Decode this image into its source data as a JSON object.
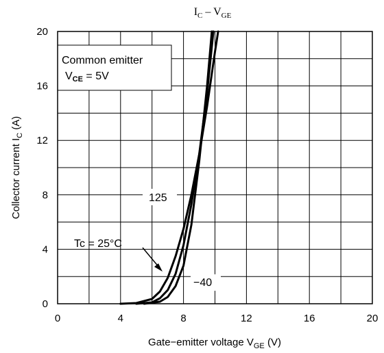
{
  "chart_data": {
    "type": "line",
    "title": {
      "main": "I",
      "main_sub": "C",
      "sep": " – V",
      "tail_sub": "GE"
    },
    "xlabel": {
      "main": "Gate−emitter voltage  V",
      "sub": "GE",
      "unit": " (V)"
    },
    "ylabel": {
      "main": "Collector current  I",
      "sub": "C",
      "unit": " (A)"
    },
    "xlim": [
      0,
      20
    ],
    "ylim": [
      0,
      20
    ],
    "xticks": [
      "0",
      "4",
      "8",
      "12",
      "16",
      "20"
    ],
    "yticks": [
      "0",
      "4",
      "8",
      "12",
      "16",
      "20"
    ],
    "grid": true,
    "legend_box": {
      "line1": "Common emitter",
      "line2_main": "V",
      "line2_sub": "CE",
      "line2_tail": " = 5V"
    },
    "annotations": {
      "t125": "125",
      "tc25": "Tc = 25°C",
      "tm40": "−40"
    },
    "series": [
      {
        "name": "125",
        "points": [
          [
            4.0,
            0
          ],
          [
            5.0,
            0.05
          ],
          [
            6.0,
            0.35
          ],
          [
            6.5,
            0.9
          ],
          [
            7.0,
            1.9
          ],
          [
            7.5,
            3.5
          ],
          [
            8.0,
            5.5
          ],
          [
            8.5,
            8.0
          ],
          [
            9.0,
            11.0
          ],
          [
            9.5,
            14.5
          ],
          [
            10.0,
            18.5
          ],
          [
            10.2,
            20
          ]
        ]
      },
      {
        "name": "25",
        "points": [
          [
            5.0,
            0
          ],
          [
            6.0,
            0.1
          ],
          [
            6.5,
            0.4
          ],
          [
            7.0,
            1.0
          ],
          [
            7.5,
            2.2
          ],
          [
            8.0,
            4.3
          ],
          [
            8.5,
            7.3
          ],
          [
            9.0,
            11.0
          ],
          [
            9.5,
            15.5
          ],
          [
            9.9,
            20
          ]
        ]
      },
      {
        "name": "−40",
        "points": [
          [
            5.5,
            0
          ],
          [
            6.5,
            0.15
          ],
          [
            7.0,
            0.5
          ],
          [
            7.5,
            1.3
          ],
          [
            8.0,
            2.8
          ],
          [
            8.5,
            5.8
          ],
          [
            9.0,
            10.5
          ],
          [
            9.5,
            16.0
          ],
          [
            9.8,
            20
          ]
        ]
      }
    ]
  }
}
